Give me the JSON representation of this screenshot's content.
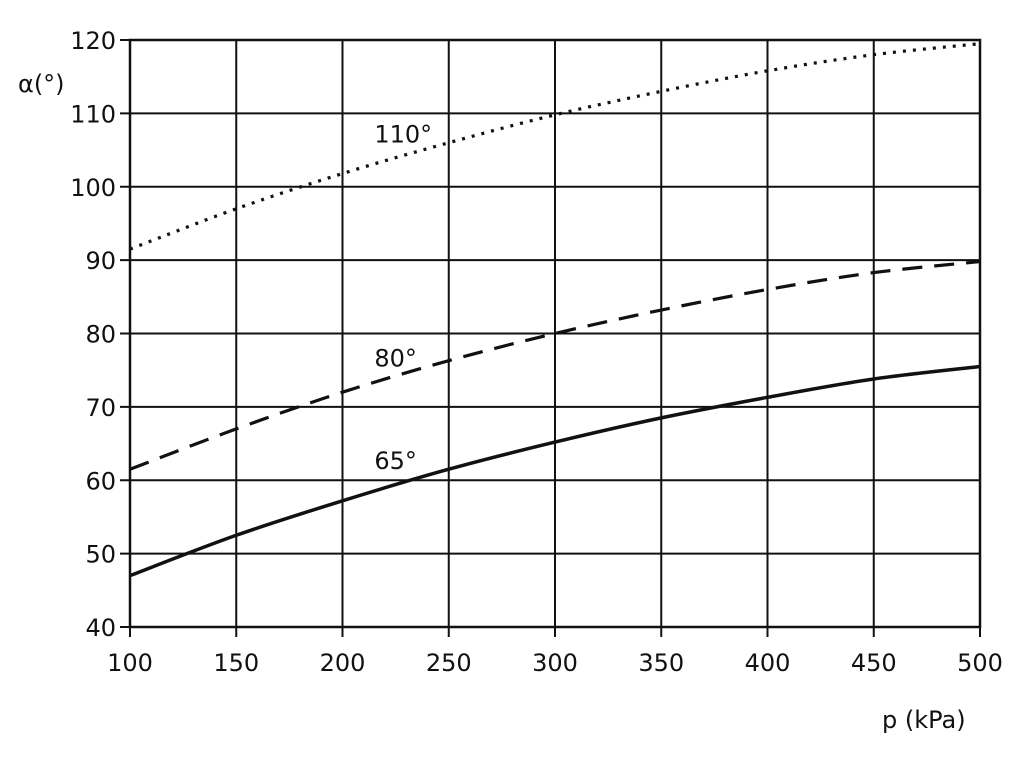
{
  "chart_data": {
    "type": "line",
    "title": "",
    "xlabel": "p (kPa)",
    "ylabel": "α(°)",
    "xlim": [
      100,
      500
    ],
    "ylim": [
      40,
      120
    ],
    "x_ticks": [
      100,
      150,
      200,
      250,
      300,
      350,
      400,
      450,
      500
    ],
    "y_ticks": [
      40,
      50,
      60,
      70,
      80,
      90,
      100,
      110,
      120
    ],
    "grid": true,
    "legend": "none",
    "line_color": "#111111",
    "series": [
      {
        "name": "110°",
        "style": "dotted",
        "label_at": [
          215,
          106
        ],
        "x": [
          100,
          150,
          200,
          250,
          300,
          350,
          400,
          450,
          500
        ],
        "y": [
          91.5,
          97.0,
          101.8,
          106.0,
          109.8,
          113.0,
          115.8,
          118.0,
          119.5
        ]
      },
      {
        "name": "80°",
        "style": "dashed",
        "label_at": [
          215,
          75.5
        ],
        "x": [
          100,
          150,
          200,
          250,
          300,
          350,
          400,
          450,
          500
        ],
        "y": [
          61.5,
          67.0,
          72.0,
          76.3,
          80.0,
          83.2,
          86.0,
          88.3,
          89.8
        ]
      },
      {
        "name": "65°",
        "style": "solid",
        "label_at": [
          215,
          61.5
        ],
        "x": [
          100,
          150,
          200,
          250,
          300,
          350,
          400,
          450,
          500
        ],
        "y": [
          47.0,
          52.5,
          57.2,
          61.5,
          65.2,
          68.5,
          71.3,
          73.8,
          75.5
        ]
      }
    ]
  }
}
